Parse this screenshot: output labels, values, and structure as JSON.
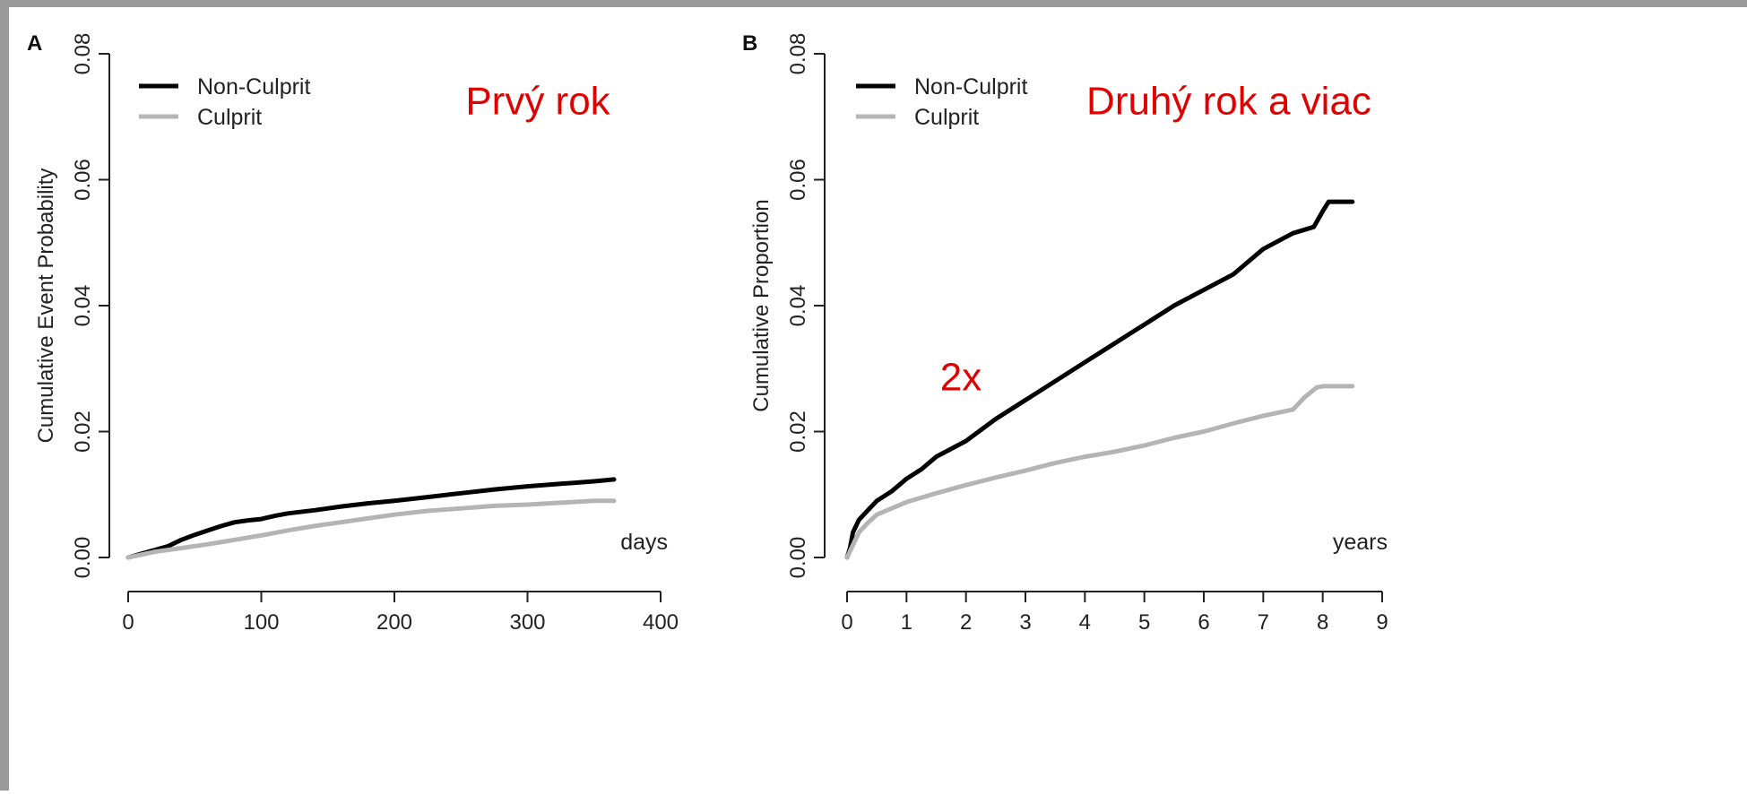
{
  "chart_data": [
    {
      "panel": "A",
      "type": "line",
      "ylabel": "Cumulative Event Probability",
      "xunit": "days",
      "annotation": "Prvý rok",
      "xlim": [
        0,
        400
      ],
      "ylim": [
        0,
        0.08
      ],
      "x_ticks": [
        "0",
        "100",
        "200",
        "300",
        "400"
      ],
      "y_ticks": [
        "0.00",
        "0.02",
        "0.04",
        "0.06",
        "0.08"
      ],
      "legend": [
        "Non-Culprit",
        "Culprit"
      ],
      "series": [
        {
          "name": "Non-Culprit",
          "color": "#000000",
          "x": [
            0,
            10,
            20,
            30,
            40,
            50,
            60,
            70,
            80,
            90,
            100,
            110,
            120,
            140,
            160,
            180,
            200,
            225,
            250,
            275,
            300,
            325,
            350,
            365
          ],
          "y": [
            0.0,
            0.0006,
            0.0012,
            0.0018,
            0.0028,
            0.0036,
            0.0043,
            0.005,
            0.0056,
            0.0059,
            0.0061,
            0.0066,
            0.007,
            0.0075,
            0.0081,
            0.0086,
            0.009,
            0.0096,
            0.0102,
            0.0108,
            0.0113,
            0.0117,
            0.0121,
            0.0124
          ]
        },
        {
          "name": "Culprit",
          "color": "#b4b4b4",
          "x": [
            0,
            20,
            40,
            60,
            80,
            100,
            120,
            140,
            160,
            180,
            200,
            225,
            250,
            275,
            300,
            325,
            350,
            365
          ],
          "y": [
            0.0,
            0.0009,
            0.0015,
            0.0021,
            0.0028,
            0.0035,
            0.0043,
            0.005,
            0.0056,
            0.0062,
            0.0068,
            0.0074,
            0.0078,
            0.0082,
            0.0084,
            0.0087,
            0.009,
            0.009
          ]
        }
      ]
    },
    {
      "panel": "B",
      "type": "line",
      "ylabel": "Cumulative Proportion",
      "xunit": "years",
      "annotation": "Druhý rok a viac",
      "extra_annotation": "2x",
      "xlim": [
        0,
        9
      ],
      "ylim": [
        0,
        0.08
      ],
      "x_ticks": [
        "0",
        "1",
        "2",
        "3",
        "4",
        "5",
        "6",
        "7",
        "8",
        "9"
      ],
      "y_ticks": [
        "0.00",
        "0.02",
        "0.04",
        "0.06",
        "0.08"
      ],
      "legend": [
        "Non-Culprit",
        "Culprit"
      ],
      "series": [
        {
          "name": "Non-Culprit",
          "color": "#000000",
          "x": [
            0,
            0.05,
            0.1,
            0.2,
            0.35,
            0.5,
            0.75,
            1.0,
            1.25,
            1.5,
            2.0,
            2.5,
            3.0,
            3.5,
            4.0,
            4.5,
            5.0,
            5.5,
            6.0,
            6.5,
            7.0,
            7.5,
            7.85,
            8.0,
            8.1,
            8.5
          ],
          "y": [
            0.0,
            0.0015,
            0.004,
            0.006,
            0.0075,
            0.009,
            0.0105,
            0.0125,
            0.014,
            0.016,
            0.0185,
            0.022,
            0.025,
            0.028,
            0.031,
            0.034,
            0.037,
            0.04,
            0.0425,
            0.045,
            0.049,
            0.0515,
            0.0525,
            0.055,
            0.0565,
            0.0565
          ]
        },
        {
          "name": "Culprit",
          "color": "#b4b4b4",
          "x": [
            0,
            0.05,
            0.1,
            0.2,
            0.35,
            0.5,
            0.75,
            1.0,
            1.5,
            2.0,
            2.5,
            3.0,
            3.5,
            4.0,
            4.5,
            5.0,
            5.5,
            6.0,
            6.5,
            7.0,
            7.5,
            7.7,
            7.9,
            8.0,
            8.5
          ],
          "y": [
            0.0,
            0.001,
            0.002,
            0.004,
            0.0055,
            0.0068,
            0.0078,
            0.0088,
            0.0102,
            0.0115,
            0.0127,
            0.0138,
            0.015,
            0.016,
            0.0168,
            0.0178,
            0.019,
            0.02,
            0.0213,
            0.0225,
            0.0235,
            0.0255,
            0.027,
            0.0272,
            0.0272
          ]
        }
      ]
    }
  ]
}
